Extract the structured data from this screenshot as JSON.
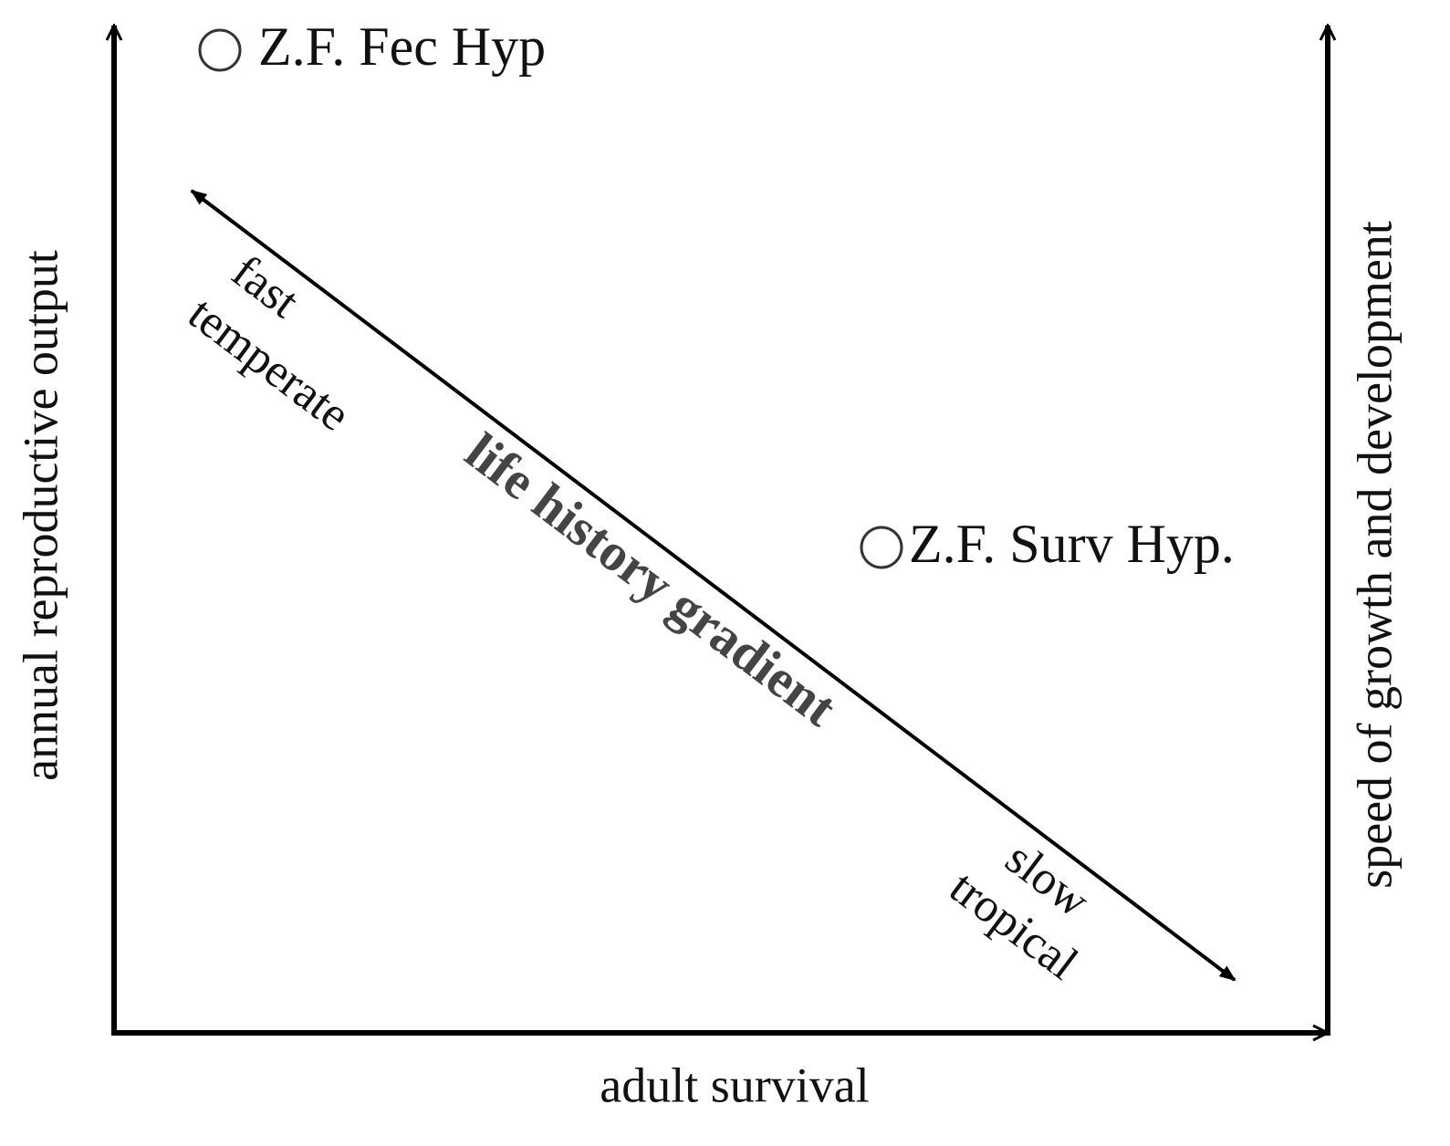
{
  "axes": {
    "x_label": "adult survival",
    "y_label": "annual reproductive output",
    "y2_label": "speed of growth and development"
  },
  "gradient": {
    "label": "life history gradient",
    "fast_end": [
      "fast",
      "temperate"
    ],
    "slow_end": [
      "slow",
      "tropical"
    ]
  },
  "points": [
    {
      "label": "Z.F. Fec Hyp"
    },
    {
      "label": "Z.F. Surv Hyp."
    }
  ]
}
